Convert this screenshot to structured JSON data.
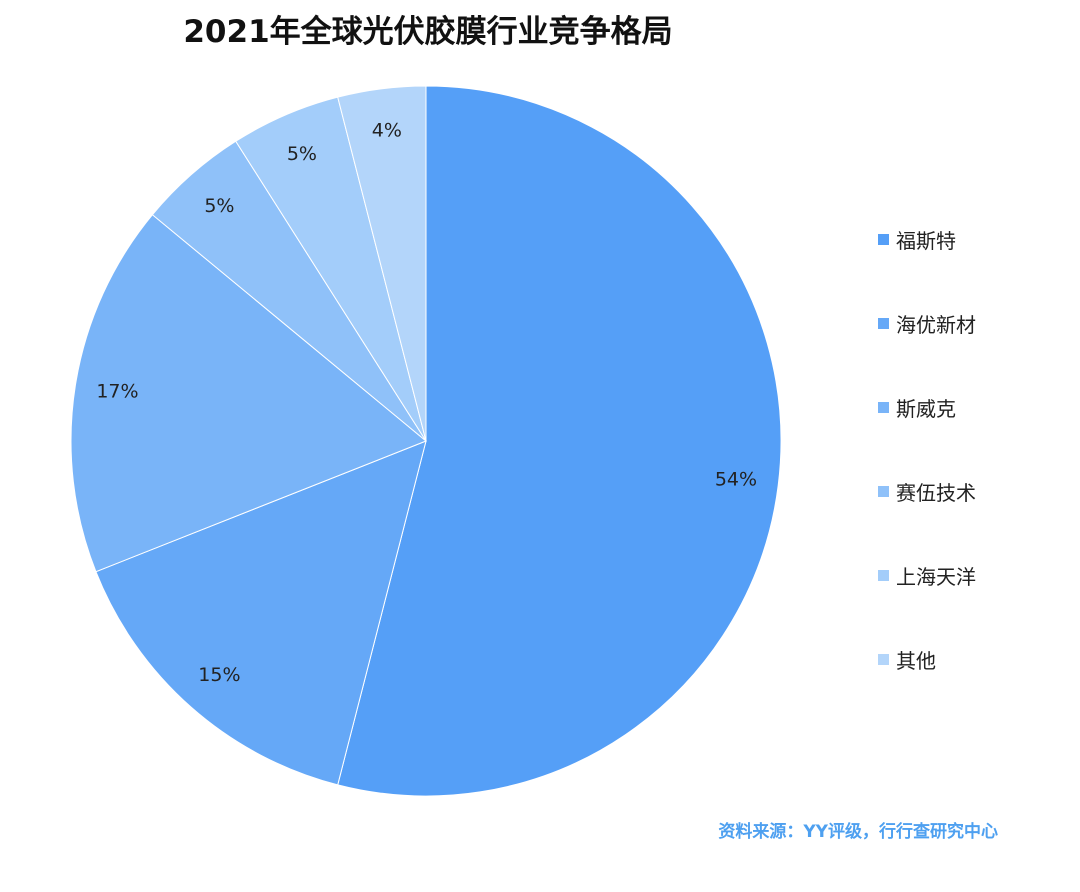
{
  "chart_data": {
    "type": "pie",
    "title": "2021年全球光伏胶膜行业竞争格局",
    "slices": [
      {
        "label": "福斯特",
        "value": 54,
        "display": "54%",
        "color": "#559ff7"
      },
      {
        "label": "海优新材",
        "value": 15,
        "display": "15%",
        "color": "#65a8f7"
      },
      {
        "label": "斯威克",
        "value": 17,
        "display": "17%",
        "color": "#79b4f8"
      },
      {
        "label": "赛伍技术",
        "value": 5,
        "display": "5%",
        "color": "#8fc1f9"
      },
      {
        "label": "上海天洋",
        "value": 5,
        "display": "5%",
        "color": "#a3cdfa"
      },
      {
        "label": "其他",
        "value": 4,
        "display": "4%",
        "color": "#b3d5fa"
      }
    ],
    "legend_position": "right"
  },
  "source": "资料来源：YY评级，行行查研究中心"
}
